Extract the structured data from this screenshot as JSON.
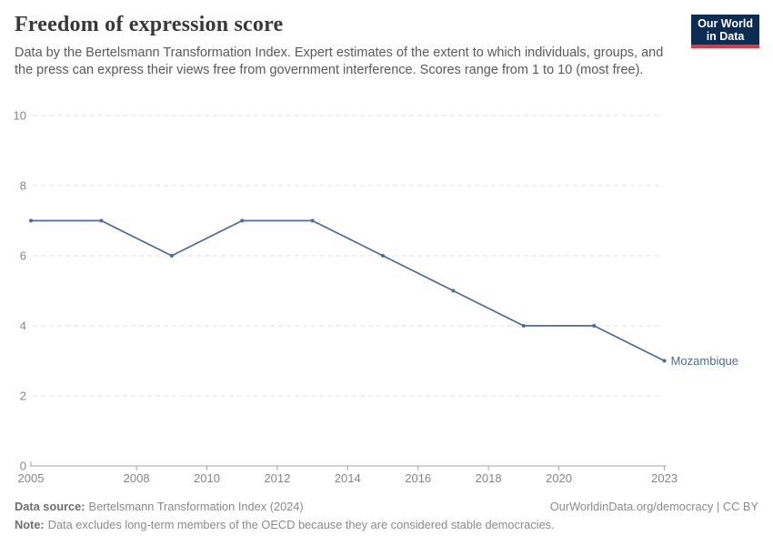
{
  "header": {
    "title": "Freedom of expression score",
    "subtitle": "Data by the Bertelsmann Transformation Index. Expert estimates of the extent to which individuals, groups, and the press can express their views free from government interference. Scores range from 1 to 10 (most free).",
    "logo": {
      "line1": "Our World",
      "line2": "in Data",
      "background_color": "#0D2C54",
      "stripe_color": "#E0363B"
    }
  },
  "chart_data": {
    "type": "line",
    "title": "Freedom of expression score",
    "series": [
      {
        "name": "Mozambique",
        "color": "#4C6A9C",
        "x": [
          2005,
          2007,
          2009,
          2011,
          2013,
          2015,
          2017,
          2019,
          2021,
          2023
        ],
        "values": [
          7,
          7,
          6,
          7,
          7,
          6,
          5,
          4,
          4,
          3
        ]
      }
    ],
    "x_ticks": [
      2005,
      2008,
      2010,
      2012,
      2014,
      2016,
      2018,
      2020,
      2023
    ],
    "y_ticks": [
      0,
      2,
      4,
      6,
      8,
      10
    ],
    "xlim": [
      2005,
      2023
    ],
    "ylim": [
      0,
      10
    ],
    "grid": "horizontal dashed",
    "legend_position": "end-of-line label",
    "end_label": "Mozambique",
    "gridline_color": "#e0e0e0",
    "axis_color": "#a3a3a3",
    "tick_label_color": "#858585"
  },
  "footer": {
    "source_label": "Data source:",
    "source_text": "Bertelsmann Transformation Index (2024)",
    "attribution": "OurWorldinData.org/democracy | CC BY",
    "note_label": "Note:",
    "note_text": "Data excludes long-term members of the OECD because they are considered stable democracies."
  }
}
